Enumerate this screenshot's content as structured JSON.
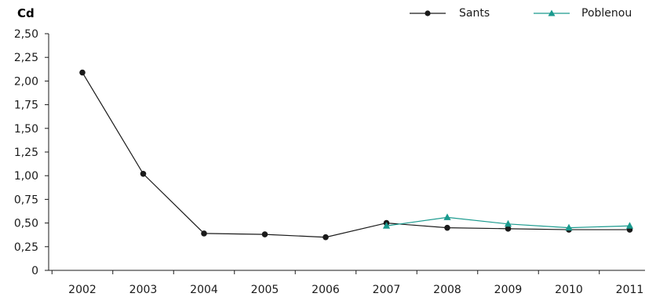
{
  "chart_data": {
    "type": "line",
    "title": "",
    "xlabel": "",
    "ylabel": "Cd",
    "categories": [
      "2002",
      "2003",
      "2004",
      "2005",
      "2006",
      "2007",
      "2008",
      "2009",
      "2010",
      "2011"
    ],
    "yticks": [
      "0",
      "0,25",
      "0,50",
      "0,75",
      "1,00",
      "1,25",
      "1,50",
      "1,75",
      "2,00",
      "2,25",
      "2,50"
    ],
    "ylim": [
      0,
      2.5
    ],
    "grid": false,
    "legend_position": "top-right",
    "series": [
      {
        "name": "Sants",
        "marker": "circle",
        "color": "#1a1a1a",
        "values": [
          2.09,
          1.02,
          0.39,
          0.38,
          0.35,
          0.5,
          0.45,
          0.44,
          0.43,
          0.43
        ]
      },
      {
        "name": "Poblenou",
        "marker": "triangle",
        "color": "#1a9a8e",
        "values": [
          null,
          null,
          null,
          null,
          null,
          0.47,
          0.56,
          0.49,
          0.45,
          0.47
        ]
      }
    ]
  }
}
